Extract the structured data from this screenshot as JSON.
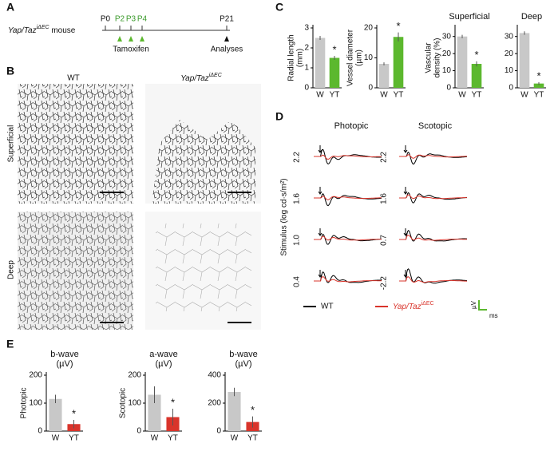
{
  "panels": [
    "A",
    "B",
    "C",
    "D",
    "E"
  ],
  "timeline": {
    "mouse_label": [
      "Yap/Taz",
      "iΔEC",
      " mouse"
    ],
    "days": [
      "P0",
      "P2",
      "P3",
      "P4",
      "P21"
    ],
    "tamoxifen": "Tamoxifen",
    "analyses": "Analyses"
  },
  "images": {
    "columns": [
      "WT",
      "Yap/Taz",
      "iΔEC"
    ],
    "rows": [
      "Superficial",
      "Deep"
    ]
  },
  "erg": {
    "columns": [
      "Photopic",
      "Scotopic"
    ],
    "y_label": "Stimulus (log cd·s/m²)",
    "photopic_stimuli": [
      "2.2",
      "1.6",
      "1.0",
      "0.4"
    ],
    "scotopic_stimuli": [
      "2.2",
      "1.6",
      "0.7",
      "-2.2"
    ],
    "legend": [
      "WT",
      "Yap/Taz",
      "iΔEC"
    ],
    "scale": [
      "µV",
      "ms"
    ]
  },
  "chart_data": [
    {
      "type": "bar",
      "ylabel": [
        "Radial length",
        "(mm)"
      ],
      "categories": [
        "W",
        "YT"
      ],
      "values": [
        2.5,
        1.5
      ],
      "errors": [
        0.1,
        0.1
      ],
      "colors": [
        "#c8c8c8",
        "#5cb82e"
      ],
      "ylim": [
        0,
        3
      ],
      "yticks": [
        0,
        1,
        2,
        3
      ],
      "annotation": "*"
    },
    {
      "type": "bar",
      "ylabel": [
        "Vessel diameter",
        "(µm)"
      ],
      "categories": [
        "W",
        "YT"
      ],
      "values": [
        8,
        17
      ],
      "errors": [
        0.5,
        1.5
      ],
      "colors": [
        "#c8c8c8",
        "#5cb82e"
      ],
      "ylim": [
        0,
        20
      ],
      "yticks": [
        0,
        10,
        20
      ],
      "annotation": "*"
    },
    {
      "type": "bar",
      "title": [
        "Superficial"
      ],
      "ylabel": [
        "Vascular",
        "density (%)"
      ],
      "categories": [
        "W",
        "YT"
      ],
      "values": [
        30,
        14
      ],
      "errors": [
        1,
        1.5
      ],
      "colors": [
        "#c8c8c8",
        "#5cb82e"
      ],
      "ylim": [
        0,
        35
      ],
      "yticks": [
        0,
        10,
        20,
        30
      ],
      "annotation": "*"
    },
    {
      "type": "bar",
      "title": [
        "Deep"
      ],
      "categories": [
        "W",
        "YT"
      ],
      "values": [
        32,
        2.5
      ],
      "errors": [
        1,
        0.8
      ],
      "colors": [
        "#c8c8c8",
        "#5cb82e"
      ],
      "ylim": [
        0,
        35
      ],
      "yticks": [
        0,
        10,
        20,
        30
      ],
      "annotation": "*"
    },
    {
      "type": "bar",
      "title": [
        "b-wave",
        "(µV)"
      ],
      "ylabel": [
        "Photopic"
      ],
      "categories": [
        "W",
        "YT"
      ],
      "values": [
        115,
        25
      ],
      "errors": [
        15,
        15
      ],
      "colors": [
        "#c8c8c8",
        "#d9342b"
      ],
      "ylim": [
        0,
        200
      ],
      "yticks": [
        0,
        100,
        200
      ],
      "annotation": "*"
    },
    {
      "type": "bar",
      "title": [
        "a-wave",
        "(µV)"
      ],
      "ylabel": [
        "Scotopic"
      ],
      "categories": [
        "W",
        "YT"
      ],
      "values": [
        130,
        50
      ],
      "errors": [
        30,
        30
      ],
      "colors": [
        "#c8c8c8",
        "#d9342b"
      ],
      "ylim": [
        0,
        200
      ],
      "yticks": [
        0,
        100,
        200
      ],
      "annotation": "*"
    },
    {
      "type": "bar",
      "title": [
        "b-wave",
        "(µV)"
      ],
      "categories": [
        "W",
        "YT"
      ],
      "values": [
        280,
        65
      ],
      "errors": [
        30,
        40
      ],
      "colors": [
        "#c8c8c8",
        "#d9342b"
      ],
      "ylim": [
        0,
        400
      ],
      "yticks": [
        0,
        200,
        400
      ],
      "annotation": "*"
    }
  ]
}
